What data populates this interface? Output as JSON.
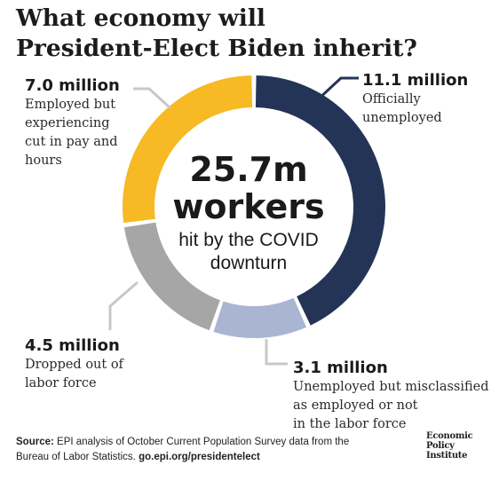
{
  "title": {
    "line1": "What economy will",
    "line2": "President-Elect Biden inherit?"
  },
  "chart_data": {
    "type": "pie",
    "variant": "donut",
    "unit": "million",
    "total_label": "25.7m",
    "slices": [
      {
        "label": "Officially unemployed",
        "value": 11.1,
        "value_label": "11.1 million",
        "color": "#243456",
        "desc": [
          "Officially",
          "unemployed"
        ]
      },
      {
        "label": "Unemployed but misclassified as employed or not in the labor force",
        "value": 3.1,
        "value_label": "3.1 million",
        "color": "#a9b5d2",
        "desc": [
          "Unemployed but misclassified",
          "as employed or not",
          "in the labor force"
        ]
      },
      {
        "label": "Dropped out of labor force",
        "value": 4.5,
        "value_label": "4.5 million",
        "color": "#a6a6a6",
        "desc": [
          "Dropped out of",
          "labor force"
        ]
      },
      {
        "label": "Employed but experiencing cut in pay and hours",
        "value": 7.0,
        "value_label": "7.0 million",
        "color": "#f7b924",
        "desc": [
          "Employed but",
          "experiencing",
          "cut in pay and",
          "hours"
        ]
      }
    ],
    "center": {
      "line1": "25.7m",
      "line2": "workers",
      "line3": "hit by the COVID",
      "line4": "downturn"
    },
    "leader_line_color": "#c8c8c8"
  },
  "source": {
    "prefix": "Source:",
    "text1": " EPI analysis of October Current Population Survey data from the",
    "text2": "Bureau of Labor Statistics. ",
    "link": "go.epi.org/presidentelect"
  },
  "logo": {
    "line1": "Economic",
    "line2": "Policy",
    "line3": "Institute"
  }
}
